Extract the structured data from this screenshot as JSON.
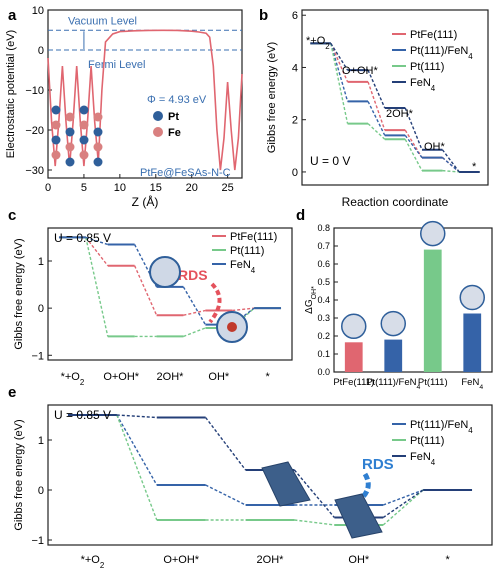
{
  "colors": {
    "red": "#e06670",
    "green": "#77c98a",
    "blue": "#3563a8",
    "navy": "#243f78",
    "axis": "#222222",
    "panel_text": "#3a6fb0",
    "rds_red": "#e4525c",
    "rds_blue": "#2f7fd1",
    "pt_atom": "#2f5f9a",
    "fe_atom": "#d98080"
  },
  "chart_data": [
    {
      "panel": "a",
      "type": "line",
      "xlabel": "Z (Å)",
      "ylabel": "Electrostatic potential (eV)",
      "xlim": [
        0,
        27
      ],
      "ylim": [
        -32,
        10
      ],
      "xticks": [
        0,
        5,
        10,
        15,
        20,
        25
      ],
      "yticks": [
        10,
        0,
        -10,
        -20,
        -30
      ],
      "x": [
        0,
        0.5,
        1,
        1.5,
        2,
        2.5,
        3,
        3.5,
        4,
        4.5,
        5,
        5.5,
        6,
        6.5,
        7,
        7.5,
        8,
        9,
        10,
        12,
        14,
        16,
        18,
        19,
        20,
        21,
        22,
        22.5,
        23,
        23.5,
        24,
        24.5,
        25,
        25.5,
        26,
        26.5,
        27
      ],
      "y": [
        -2,
        -18,
        -29,
        -18,
        -4,
        -18,
        -29,
        -18,
        -4,
        -18,
        -29,
        -18,
        -4,
        -18,
        -28,
        -10,
        2,
        4,
        4.6,
        4.8,
        4.9,
        4.93,
        4.9,
        4.8,
        4.7,
        4.5,
        4.2,
        3.2,
        -4,
        -20,
        -30,
        -22,
        -8,
        -20,
        -30,
        -22,
        -6
      ],
      "vacuum_level": 4.93,
      "fermi_level": 0,
      "annotations": {
        "vacuum": "Vacuum Level",
        "fermi": "Fermi Level",
        "phi": "Φ = 4.93 eV",
        "legend_pt": "Pt",
        "legend_fe": "Fe",
        "system": "PtFe@FeSAs-N-C"
      }
    },
    {
      "panel": "b",
      "type": "line",
      "xlabel": "Reaction coordinate",
      "ylabel": "Gibbs free energy (eV)",
      "ylim": [
        -0.5,
        6.2
      ],
      "yticks": [
        0,
        2,
        4,
        6
      ],
      "steps": [
        "*+O2",
        "O+OH*",
        "2OH*",
        "OH*",
        "*"
      ],
      "step_labels": {
        "s0": "*+O2",
        "s1": "O+OH*",
        "s2": "2OH*",
        "s3": "OH*",
        "s4": "*"
      },
      "condition": "U = 0 V",
      "series": [
        {
          "name": "PtFe(111)",
          "color": "#e06670",
          "values": [
            4.92,
            3.45,
            1.6,
            0.55,
            0
          ]
        },
        {
          "name": "Pt(111)/FeN4",
          "color": "#3563a8",
          "values": [
            4.92,
            2.7,
            1.4,
            0.55,
            0
          ]
        },
        {
          "name": "Pt(111)",
          "color": "#77c98a",
          "values": [
            4.92,
            1.85,
            1.25,
            0.05,
            0
          ]
        },
        {
          "name": "FeN4",
          "color": "#243f78",
          "values": [
            4.92,
            3.9,
            2.45,
            0.85,
            0
          ]
        }
      ],
      "legend_labels": [
        "PtFe(111)",
        "Pt(111)/FeN4",
        "Pt(111)",
        "FeN4"
      ]
    },
    {
      "panel": "c",
      "type": "line",
      "ylabel": "Gibbs free energy (eV)",
      "ylim": [
        -1.1,
        1.7
      ],
      "yticks": [
        1,
        0,
        -1
      ],
      "condition": "U = 0.85 V",
      "steps": [
        "*+O2",
        "O+OH*",
        "2OH*",
        "OH*",
        "*"
      ],
      "rds": "RDS",
      "series": [
        {
          "name": "PtFe(111)",
          "color": "#e06670",
          "values": [
            1.5,
            0.9,
            -0.15,
            -0.05,
            0
          ]
        },
        {
          "name": "Pt(111)",
          "color": "#77c98a",
          "values": [
            1.5,
            -0.6,
            -0.6,
            -0.42,
            0
          ]
        },
        {
          "name": "FeN4",
          "color": "#3563a8",
          "values": [
            1.5,
            1.35,
            0.45,
            -0.35,
            0
          ]
        }
      ],
      "legend_labels": [
        "PtFe(111)",
        "Pt(111)",
        "FeN4"
      ]
    },
    {
      "panel": "d",
      "type": "bar",
      "ylabel": "ΔG",
      "ylabel_sub": "OH*",
      "ylim": [
        0,
        0.8
      ],
      "yticks": [
        0.0,
        0.1,
        0.2,
        0.3,
        0.4,
        0.5,
        0.6,
        0.7,
        0.8
      ],
      "categories": [
        "PtFe(111)",
        "Pt(111)/FeN4",
        "Pt(111)",
        "FeN4"
      ],
      "values": [
        0.165,
        0.18,
        0.68,
        0.325
      ],
      "colors": [
        "#e06670",
        "#3563a8",
        "#77c98a",
        "#3563a8"
      ]
    },
    {
      "panel": "e",
      "type": "line",
      "ylabel": "Gibbs free energy (eV)",
      "ylim": [
        -1.1,
        1.7
      ],
      "yticks": [
        1,
        0,
        -1
      ],
      "condition": "U = 0.85 V",
      "steps": [
        "*+O2",
        "O+OH*",
        "2OH*",
        "OH*",
        "*"
      ],
      "rds": "RDS",
      "series": [
        {
          "name": "Pt(111)/FeN4",
          "color": "#3563a8",
          "values": [
            1.5,
            0.1,
            -0.3,
            -0.3,
            0
          ]
        },
        {
          "name": "Pt(111)",
          "color": "#77c98a",
          "values": [
            1.5,
            -0.6,
            -0.6,
            -0.7,
            0
          ]
        },
        {
          "name": "FeN4",
          "color": "#243f78",
          "values": [
            1.5,
            1.45,
            0.4,
            -0.55,
            0
          ]
        }
      ],
      "legend_labels": [
        "Pt(111)/FeN4",
        "Pt(111)",
        "FeN4"
      ]
    }
  ],
  "panel_labels": {
    "a": "a",
    "b": "b",
    "c": "c",
    "d": "d",
    "e": "e"
  }
}
